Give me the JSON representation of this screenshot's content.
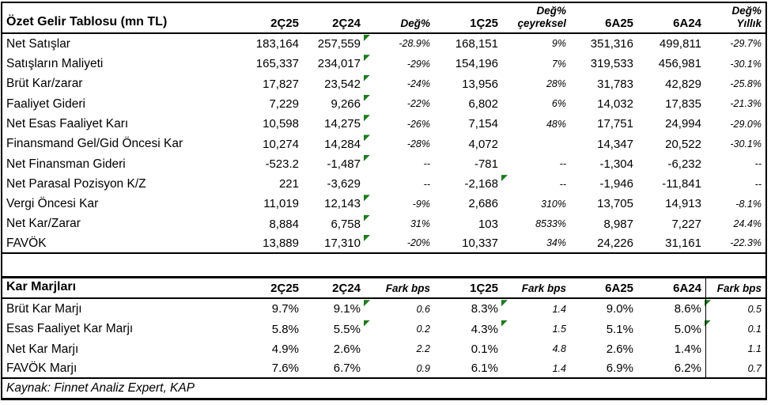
{
  "source_note": "Kaynak: Finnet Analiz Expert, KAP",
  "flag_color": "#1E7B1E",
  "chart_data": [
    {
      "type": "table",
      "title": "Özet Gelir Tablosu (mn TL)",
      "columns": [
        "2Ç25",
        "2Ç24",
        "Değ%",
        "1Ç25",
        "Değ%\nçeyreksel",
        "6A25",
        "6A24",
        "Değ%\nYıllık"
      ],
      "italic_value_cols": [
        2,
        4,
        7
      ],
      "last_col_divider": false,
      "rows": [
        {
          "label": "Net Satışlar",
          "values": [
            "183,164",
            "257,559",
            "-28.9%",
            "168,151",
            "9%",
            "351,316",
            "499,811",
            "-29.7%"
          ],
          "flag_after": [
            1
          ]
        },
        {
          "label": "Satışların Maliyeti",
          "values": [
            "165,337",
            "234,017",
            "-29%",
            "154,196",
            "7%",
            "319,533",
            "456,981",
            "-30.1%"
          ],
          "flag_after": [
            1
          ]
        },
        {
          "label": "Brüt Kar/zarar",
          "values": [
            "17,827",
            "23,542",
            "-24%",
            "13,956",
            "28%",
            "31,783",
            "42,829",
            "-25.8%"
          ],
          "flag_after": [
            1
          ]
        },
        {
          "label": "Faaliyet Gideri",
          "values": [
            "7,229",
            "9,266",
            "-22%",
            "6,802",
            "6%",
            "14,032",
            "17,835",
            "-21.3%"
          ],
          "flag_after": [
            1
          ]
        },
        {
          "label": "Net Esas Faaliyet Karı",
          "values": [
            "10,598",
            "14,275",
            "-26%",
            "7,154",
            "48%",
            "17,751",
            "24,994",
            "-29.0%"
          ],
          "flag_after": [
            1
          ]
        },
        {
          "label": "Finansmand Gel/Gid Öncesi Kar",
          "values": [
            "10,274",
            "14,284",
            "-28%",
            "4,072",
            "",
            "14,347",
            "20,522",
            "-30.1%"
          ],
          "flag_after": [
            1
          ]
        },
        {
          "label": "Net Finansman Gideri",
          "values": [
            "-523.2",
            "-1,487",
            "--",
            "-781",
            "--",
            "-1,304",
            "-6,232",
            "--"
          ],
          "flag_after": [
            1
          ]
        },
        {
          "label": "Net Parasal Pozisyon K/Z",
          "values": [
            "221",
            "-3,629",
            "--",
            "-2,168",
            "--",
            "-1,946",
            "-11,841",
            "--"
          ],
          "flag_after": [
            3
          ]
        },
        {
          "label": "Vergi Öncesi Kar",
          "values": [
            "11,019",
            "12,143",
            "-9%",
            "2,686",
            "310%",
            "13,705",
            "14,913",
            "-8.1%"
          ],
          "flag_after": [
            1
          ]
        },
        {
          "label": "Net Kar/Zarar",
          "values": [
            "8,884",
            "6,758",
            "31%",
            "103",
            "8533%",
            "8,987",
            "7,227",
            "24.4%"
          ],
          "flag_after": [
            1
          ]
        },
        {
          "label": "FAVÖK",
          "values": [
            "13,889",
            "17,310",
            "-20%",
            "10,337",
            "34%",
            "24,226",
            "31,161",
            "-22.3%"
          ],
          "flag_after": [
            1
          ]
        }
      ]
    },
    {
      "type": "table",
      "title": "Kar Marjları",
      "columns": [
        "2Ç25",
        "2Ç24",
        "Fark bps",
        "1Ç25",
        "Fark bps",
        "6A25",
        "6A24",
        "Fark bps"
      ],
      "italic_value_cols": [
        2,
        4,
        7
      ],
      "last_col_divider": true,
      "rows": [
        {
          "label": "Brüt Kar Marjı",
          "values": [
            "9.7%",
            "9.1%",
            "0.6",
            "8.3%",
            "1.4",
            "9.0%",
            "8.6%",
            "0.5"
          ],
          "flag_after": [
            1,
            3,
            6
          ]
        },
        {
          "label": "Esas Faaliyet Kar Marjı",
          "values": [
            "5.8%",
            "5.5%",
            "0.2",
            "4.3%",
            "1.5",
            "5.1%",
            "5.0%",
            "0.1"
          ],
          "flag_after": [
            1,
            3,
            6
          ]
        },
        {
          "label": "Net Kar Marjı",
          "values": [
            "4.9%",
            "2.6%",
            "2.2",
            "0.1%",
            "4.8",
            "2.6%",
            "1.4%",
            "1.1"
          ],
          "flag_after": []
        },
        {
          "label": "FAVÖK Marjı",
          "values": [
            "7.6%",
            "6.7%",
            "0.9",
            "6.1%",
            "1.4",
            "6.9%",
            "6.2%",
            "0.7"
          ],
          "flag_after": []
        }
      ]
    }
  ]
}
